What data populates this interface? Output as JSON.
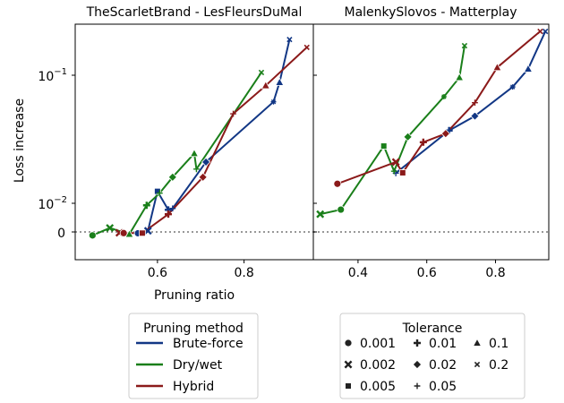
{
  "chart_data": [
    {
      "type": "line",
      "title": "TheScarletBrand - LesFleursDuMal",
      "xlabel": "Pruning ratio",
      "ylabel": "Loss increase",
      "y_scale": "symlog",
      "y_ticks": [
        "0",
        "10^-2",
        "10^-1"
      ],
      "x_ticks": [
        "0.6",
        "0.8"
      ],
      "xlim": [
        0.41,
        0.96
      ],
      "ylim": [
        -0.0025,
        0.25
      ],
      "zero_line": true,
      "series": [
        {
          "name": "Brute-force",
          "color": "#123785",
          "points": [
            {
              "x": 0.555,
              "y": -0.00045,
              "marker": "circle"
            },
            {
              "x": 0.578,
              "y": 0.0004,
              "marker": "x"
            },
            {
              "x": 0.6,
              "y": 0.0124,
              "marker": "square"
            },
            {
              "x": 0.625,
              "y": 0.0077,
              "marker": "plus"
            },
            {
              "x": 0.635,
              "y": 0.0082,
              "marker": "thin-plus"
            },
            {
              "x": 0.712,
              "y": 0.021,
              "marker": "diamond"
            },
            {
              "x": 0.868,
              "y": 0.062,
              "marker": "star"
            },
            {
              "x": 0.882,
              "y": 0.088,
              "marker": "triangle"
            },
            {
              "x": 0.905,
              "y": 0.19,
              "marker": "x-small"
            }
          ]
        },
        {
          "name": "Dry/wet",
          "color": "#1a7f1a",
          "points": [
            {
              "x": 0.45,
              "y": -0.0012,
              "marker": "circle"
            },
            {
              "x": 0.49,
              "y": 0.0014,
              "marker": "x"
            },
            {
              "x": 0.535,
              "y": -0.0008,
              "marker": "triangle"
            },
            {
              "x": 0.575,
              "y": 0.0093,
              "marker": "plus"
            },
            {
              "x": 0.605,
              "y": 0.012,
              "marker": "thin-plus"
            },
            {
              "x": 0.635,
              "y": 0.016,
              "marker": "diamond"
            },
            {
              "x": 0.685,
              "y": 0.0245,
              "marker": "triangle"
            },
            {
              "x": 0.69,
              "y": 0.0185,
              "marker": "thin-plus"
            },
            {
              "x": 0.84,
              "y": 0.105,
              "marker": "x-small"
            }
          ]
        },
        {
          "name": "Hybrid",
          "color": "#8b1a1a",
          "points": [
            {
              "x": 0.512,
              "y": -0.0003,
              "marker": "x"
            },
            {
              "x": 0.522,
              "y": -0.0004,
              "marker": "circle"
            },
            {
              "x": 0.565,
              "y": -0.0004,
              "marker": "square"
            },
            {
              "x": 0.625,
              "y": 0.0062,
              "marker": "plus"
            },
            {
              "x": 0.705,
              "y": 0.016,
              "marker": "diamond"
            },
            {
              "x": 0.775,
              "y": 0.05,
              "marker": "thin-plus"
            },
            {
              "x": 0.85,
              "y": 0.083,
              "marker": "triangle"
            },
            {
              "x": 0.945,
              "y": 0.165,
              "marker": "x-small"
            }
          ]
        }
      ]
    },
    {
      "type": "line",
      "title": "MalenkySlovos - Matterplay",
      "xlabel": "",
      "ylabel": "",
      "y_scale": "symlog",
      "x_ticks": [
        "0.4",
        "0.6",
        "0.8"
      ],
      "xlim": [
        0.27,
        0.955
      ],
      "ylim": [
        -0.0025,
        0.25
      ],
      "zero_line": true,
      "series": [
        {
          "name": "Brute-force",
          "color": "#123785",
          "points": [
            {
              "x": 0.51,
              "y": 0.0172,
              "marker": "thin-plus"
            },
            {
              "x": 0.665,
              "y": 0.037,
              "marker": "plus"
            },
            {
              "x": 0.74,
              "y": 0.048,
              "marker": "diamond"
            },
            {
              "x": 0.85,
              "y": 0.081,
              "marker": "star"
            },
            {
              "x": 0.895,
              "y": 0.112,
              "marker": "triangle"
            },
            {
              "x": 0.945,
              "y": 0.22,
              "marker": "x-small"
            }
          ]
        },
        {
          "name": "Dry/wet",
          "color": "#1a7f1a",
          "points": [
            {
              "x": 0.29,
              "y": 0.0062,
              "marker": "x"
            },
            {
              "x": 0.35,
              "y": 0.0078,
              "marker": "circle"
            },
            {
              "x": 0.475,
              "y": 0.028,
              "marker": "square"
            },
            {
              "x": 0.505,
              "y": 0.0178,
              "marker": "thin-plus"
            },
            {
              "x": 0.545,
              "y": 0.033,
              "marker": "diamond"
            },
            {
              "x": 0.65,
              "y": 0.068,
              "marker": "star"
            },
            {
              "x": 0.695,
              "y": 0.096,
              "marker": "triangle"
            },
            {
              "x": 0.71,
              "y": 0.17,
              "marker": "x-small"
            }
          ]
        },
        {
          "name": "Hybrid",
          "color": "#8b1a1a",
          "points": [
            {
              "x": 0.34,
              "y": 0.0142,
              "marker": "circle"
            },
            {
              "x": 0.51,
              "y": 0.021,
              "marker": "x"
            },
            {
              "x": 0.53,
              "y": 0.0173,
              "marker": "square"
            },
            {
              "x": 0.59,
              "y": 0.03,
              "marker": "plus"
            },
            {
              "x": 0.655,
              "y": 0.035,
              "marker": "diamond"
            },
            {
              "x": 0.74,
              "y": 0.061,
              "marker": "thin-plus"
            },
            {
              "x": 0.805,
              "y": 0.115,
              "marker": "triangle"
            },
            {
              "x": 0.93,
              "y": 0.22,
              "marker": "x-small"
            }
          ]
        }
      ]
    }
  ],
  "legends": {
    "method": {
      "title": "Pruning method",
      "items": [
        {
          "label": "Brute-force",
          "color": "#123785"
        },
        {
          "label": "Dry/wet",
          "color": "#1a7f1a"
        },
        {
          "label": "Hybrid",
          "color": "#8b1a1a"
        }
      ]
    },
    "tolerance": {
      "title": "Tolerance",
      "items": [
        {
          "label": "0.001",
          "marker": "circle"
        },
        {
          "label": "0.01",
          "marker": "plus"
        },
        {
          "label": "0.1",
          "marker": "triangle"
        },
        {
          "label": "0.002",
          "marker": "x"
        },
        {
          "label": "0.02",
          "marker": "diamond"
        },
        {
          "label": "0.2",
          "marker": "x-small"
        },
        {
          "label": "0.005",
          "marker": "square"
        },
        {
          "label": "0.05",
          "marker": "thin-plus"
        }
      ]
    }
  }
}
